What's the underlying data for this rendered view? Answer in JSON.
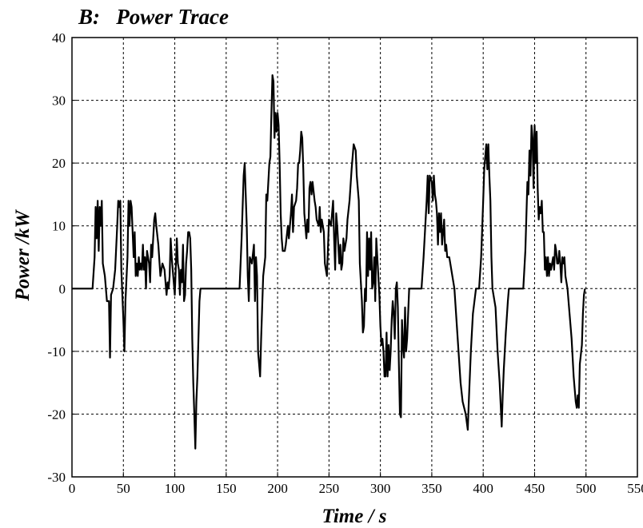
{
  "chart_data": {
    "type": "line",
    "title": "B:   Power Trace",
    "x_label": "Time / s",
    "y_label": "Power /kW",
    "x": [
      0,
      20,
      22,
      23,
      24,
      25,
      26,
      27,
      28,
      29,
      30,
      32,
      34,
      36,
      37,
      38,
      40,
      42,
      44,
      45,
      46,
      47,
      48,
      50,
      51,
      52,
      54,
      55,
      56,
      57,
      58,
      60,
      61,
      62,
      63,
      64,
      65,
      66,
      67,
      68,
      69,
      70,
      71,
      72,
      73,
      74,
      75,
      76,
      77,
      78,
      80,
      81,
      82,
      84,
      86,
      88,
      90,
      92,
      93,
      94,
      95,
      96,
      97,
      98,
      100,
      102,
      103,
      104,
      105,
      106,
      107,
      108,
      109,
      110,
      111,
      112,
      113,
      114,
      115,
      116,
      117,
      118,
      119,
      120,
      121,
      122,
      123,
      124,
      125,
      127,
      163,
      165,
      167,
      168,
      169,
      170,
      171,
      172,
      173,
      175,
      177,
      178,
      179,
      180,
      181,
      182,
      183,
      184,
      186,
      188,
      189,
      190,
      192,
      193,
      194,
      195,
      196,
      197,
      198,
      199,
      200,
      201,
      202,
      203,
      204,
      205,
      207,
      208,
      210,
      211,
      213,
      214,
      215,
      216,
      218,
      219,
      220,
      221,
      222,
      223,
      224,
      225,
      226,
      227,
      228,
      229,
      230,
      231,
      232,
      233,
      234,
      236,
      237,
      238,
      240,
      241,
      242,
      243,
      245,
      246,
      248,
      250,
      252,
      254,
      255,
      256,
      257,
      258,
      259,
      260,
      261,
      262,
      263,
      264,
      265,
      267,
      268,
      270,
      272,
      274,
      276,
      277,
      278,
      279,
      280,
      282,
      283,
      284,
      285,
      286,
      287,
      288,
      289,
      290,
      291,
      292,
      293,
      294,
      295,
      296,
      297,
      298,
      299,
      300,
      301,
      302,
      303,
      304,
      305,
      306,
      307,
      308,
      309,
      310,
      311,
      312,
      313,
      314,
      315,
      316,
      317,
      318,
      319,
      320,
      321,
      322,
      323,
      324,
      325,
      326,
      327,
      328,
      340,
      342,
      345,
      346,
      347,
      348,
      350,
      351,
      352,
      353,
      354,
      355,
      356,
      357,
      358,
      359,
      360,
      362,
      363,
      364,
      365,
      367,
      368,
      369,
      370,
      372,
      374,
      376,
      378,
      380,
      383,
      385,
      386,
      388,
      390,
      393,
      396,
      398,
      400,
      401,
      403,
      404,
      405,
      406,
      407,
      408,
      409,
      410,
      412,
      414,
      416,
      418,
      419,
      420,
      422,
      424,
      425,
      439,
      441,
      443,
      444,
      445,
      446,
      447,
      448,
      449,
      450,
      451,
      452,
      453,
      454,
      455,
      456,
      457,
      458,
      459,
      460,
      461,
      462,
      463,
      464,
      465,
      466,
      467,
      468,
      469,
      470,
      471,
      472,
      473,
      474,
      475,
      476,
      477,
      478,
      479,
      480,
      482,
      484,
      486,
      488,
      490,
      491,
      492,
      493,
      494,
      496,
      497,
      498,
      499
    ],
    "values": [
      0,
      0,
      5,
      13,
      8,
      14,
      6,
      13,
      10,
      14,
      4,
      2,
      -2,
      -2,
      -11,
      -1,
      0,
      3,
      10,
      14,
      13,
      14,
      3,
      -5,
      -10,
      -2,
      5,
      14,
      10,
      14,
      13,
      5,
      9,
      2,
      4,
      2,
      5,
      3,
      4,
      3,
      7,
      3,
      5,
      0,
      6,
      5,
      4,
      1,
      7,
      5,
      11,
      12,
      10,
      7,
      2,
      4,
      3,
      -1,
      1,
      0,
      2,
      8,
      5,
      3,
      -1,
      8,
      4,
      3,
      -1,
      3,
      1,
      7,
      -2,
      -1,
      4,
      6,
      9,
      9,
      8,
      3,
      -8,
      -15,
      -20,
      -25.5,
      -18,
      -14,
      -8,
      -2,
      0,
      0,
      0,
      8,
      18,
      20,
      15,
      10,
      2,
      -2,
      5,
      4,
      7,
      -2,
      5,
      2,
      -10,
      -12,
      -14,
      -8,
      2,
      5,
      15,
      14,
      20,
      21,
      28,
      34,
      33,
      24,
      28,
      25,
      28,
      26,
      20,
      12,
      8,
      6,
      6,
      7,
      10,
      8,
      12,
      15,
      9,
      13,
      14,
      16,
      20,
      20,
      22,
      25,
      24,
      19,
      12,
      10,
      8,
      11,
      9,
      16,
      17,
      15,
      17,
      14,
      13,
      11,
      10,
      13,
      9,
      11,
      9,
      4,
      2,
      11,
      10,
      14,
      8,
      3,
      12,
      10,
      7,
      4,
      7,
      3,
      4,
      8,
      6,
      8,
      11,
      14,
      19,
      23,
      22,
      18,
      16,
      14,
      4,
      -2,
      -7,
      -6,
      0,
      -2,
      9,
      2,
      8,
      3,
      9,
      0,
      1,
      5,
      -2,
      8,
      5,
      2,
      -1,
      -6,
      -9,
      -8,
      -10,
      -14,
      -14,
      -7,
      -14,
      -9,
      -13,
      -10,
      -5,
      -2,
      -4,
      -8,
      0,
      1,
      -3,
      -12,
      -20,
      -20.5,
      -5,
      -9,
      -11,
      -3,
      -10,
      -8,
      -4,
      0,
      0,
      5,
      14,
      18,
      12,
      18,
      17,
      14,
      18,
      15,
      14,
      12,
      7,
      12,
      9,
      12,
      7,
      11,
      6,
      7,
      5,
      5,
      4,
      3,
      2,
      0,
      -5,
      -10,
      -15,
      -18,
      -20,
      -22.5,
      -18,
      -10,
      -4,
      0,
      0,
      5,
      14,
      19,
      23,
      19,
      23,
      18,
      14,
      5,
      0,
      -1,
      -3,
      -10,
      -15,
      -22,
      -17,
      -13,
      -7,
      -2,
      0,
      0,
      6,
      17,
      15,
      22,
      18,
      26,
      24,
      16,
      26,
      20,
      25,
      16,
      11,
      13,
      12,
      14,
      9,
      9,
      3,
      5,
      2,
      5,
      2,
      4,
      3,
      4,
      5,
      3,
      7,
      6,
      4,
      4,
      6,
      4,
      1,
      5,
      4,
      5,
      2,
      0,
      -4,
      -8,
      -14,
      -18,
      -19,
      -17,
      -19,
      -12,
      -9,
      -4,
      -1,
      0
    ],
    "color": "#000000",
    "xlim": [
      0,
      550
    ],
    "xticks": [
      0,
      50,
      100,
      150,
      200,
      250,
      300,
      350,
      400,
      450,
      500,
      550
    ],
    "ylim": [
      -30,
      40
    ],
    "yticks": [
      -30,
      -20,
      -10,
      0,
      10,
      20,
      30,
      40
    ],
    "grid": true
  }
}
